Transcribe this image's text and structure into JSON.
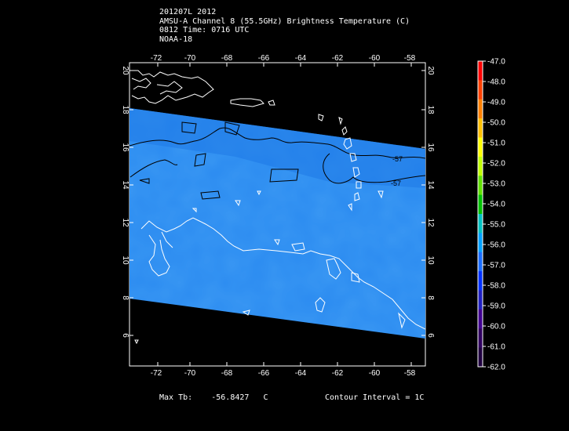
{
  "header": {
    "line1": "201207L 2012",
    "line2": "AMSU-A Channel 8 (55.5GHz) Brightness Temperature (C)",
    "line3": "0812 Time: 0716 UTC",
    "line4": "NOAA-18"
  },
  "axes": {
    "lon_ticks": [
      "-72",
      "-70",
      "-68",
      "-66",
      "-64",
      "-62",
      "-60",
      "-58"
    ],
    "lat_ticks": [
      "20",
      "18",
      "16",
      "14",
      "12",
      "10",
      "8",
      "6"
    ]
  },
  "contour_labels": [
    "-57",
    "-57"
  ],
  "colorbar": {
    "labels": [
      "-47.0",
      "-48.0",
      "-49.0",
      "-50.0",
      "-51.0",
      "-52.0",
      "-53.0",
      "-54.0",
      "-55.0",
      "-56.0",
      "-57.0",
      "-58.0",
      "-59.0",
      "-60.0",
      "-61.0",
      "-62.0"
    ],
    "colors": [
      "#ff0000",
      "#ff4000",
      "#ff8000",
      "#ffbf00",
      "#ffff00",
      "#c0ff00",
      "#60e000",
      "#00c000",
      "#00c0c0",
      "#00a0ff",
      "#1a6cff",
      "#0030ff",
      "#2020c0",
      "#400090",
      "#300060",
      "#200040"
    ]
  },
  "footer": {
    "max_label": "Max Tb:",
    "max_value": "-56.8427",
    "max_unit": "C",
    "contour_interval": "Contour Interval = 1C"
  },
  "colors": {
    "swath": "#2a8af0",
    "swath_dark": "#1e78e6",
    "coast": "#ffffff",
    "contour": "#000000"
  }
}
